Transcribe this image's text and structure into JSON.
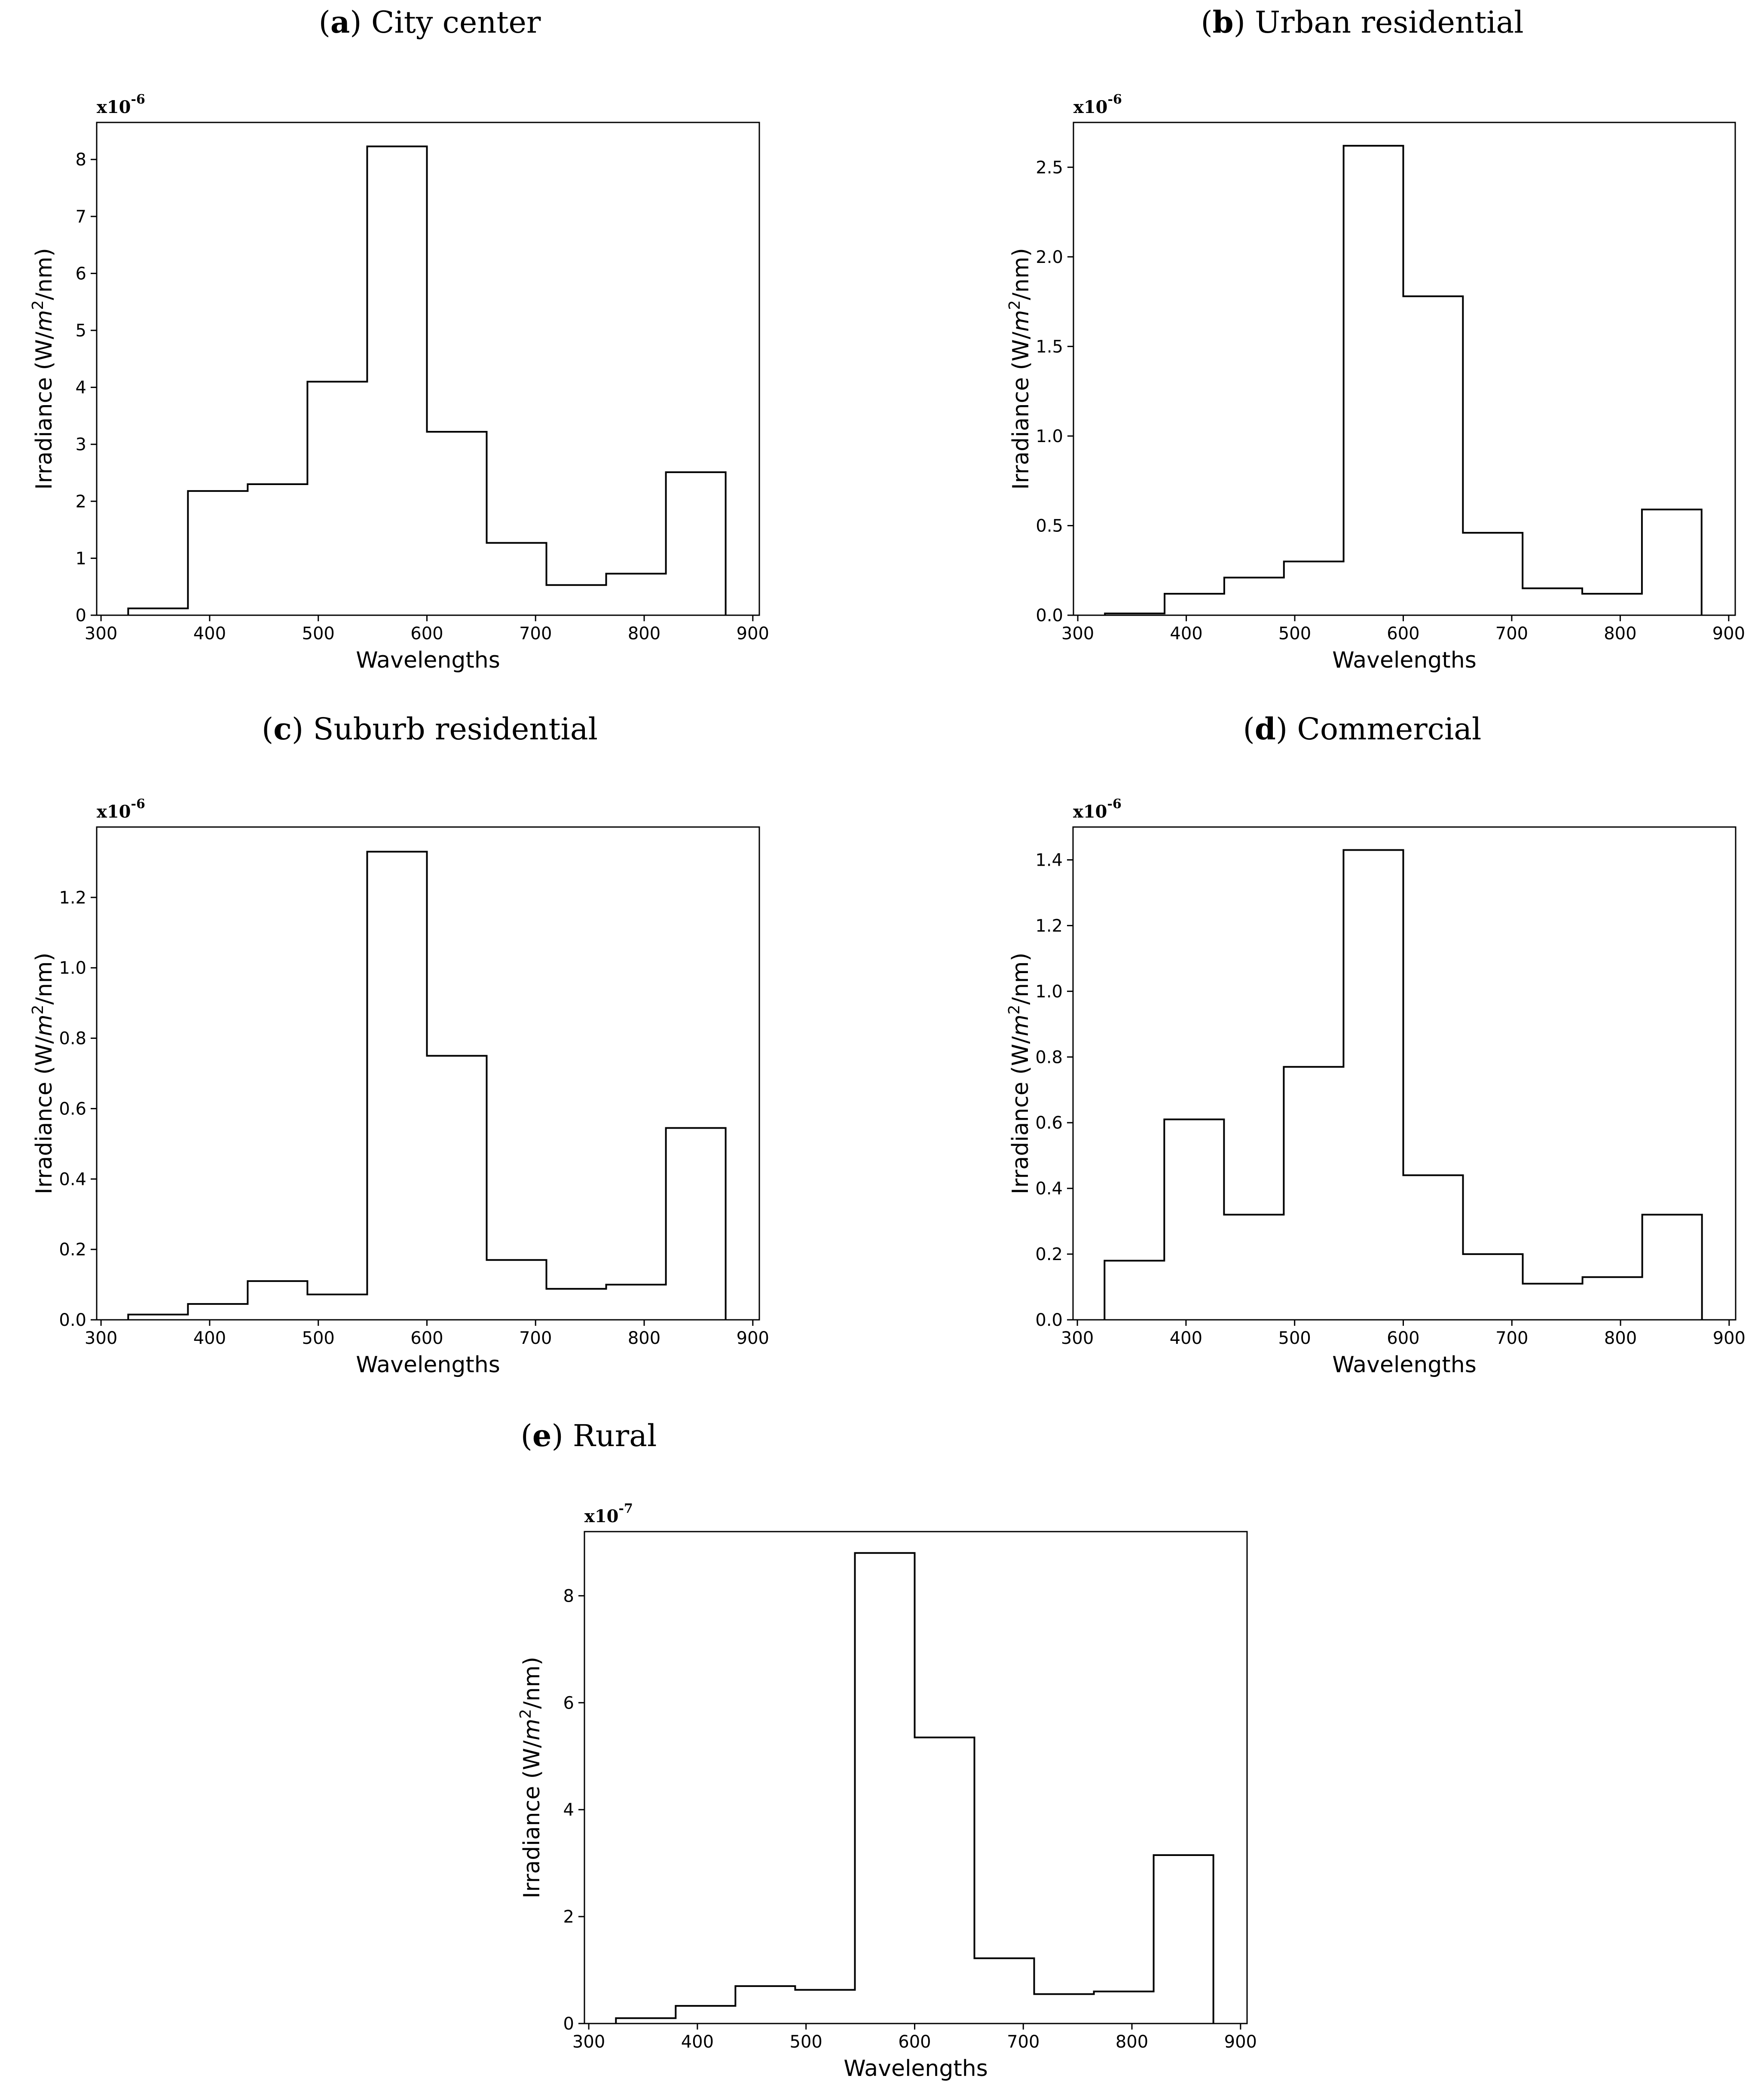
{
  "figure": {
    "xlabel": "Wavelengths",
    "ylabel_parts": [
      "Irradiance (W/",
      "m",
      "2",
      "/nm)"
    ]
  },
  "chart_data": [
    {
      "type": "step",
      "panel_letter": "a",
      "title": "City center",
      "xlabel": "Wavelengths",
      "ylabel": "Irradiance (W/m²/nm)",
      "multiplier": "x10",
      "multiplier_exp": "-6",
      "bin_edges": [
        325,
        380,
        435,
        490,
        545,
        600,
        655,
        710,
        765,
        820,
        875
      ],
      "values": [
        0.12,
        2.18,
        2.3,
        4.1,
        8.23,
        3.22,
        1.27,
        0.53,
        0.73,
        2.51
      ],
      "xlim": [
        296,
        906
      ],
      "ylim": [
        0,
        8.65
      ],
      "xticks": [
        300,
        400,
        500,
        600,
        700,
        800,
        900
      ],
      "yticks": [
        0,
        1,
        2,
        3,
        4,
        5,
        6,
        7,
        8
      ],
      "ytick_labels": [
        "0",
        "1",
        "2",
        "3",
        "4",
        "5",
        "6",
        "7",
        "8"
      ]
    },
    {
      "type": "step",
      "panel_letter": "b",
      "title": "Urban residential",
      "xlabel": "Wavelengths",
      "ylabel": "Irradiance (W/m²/nm)",
      "multiplier": "x10",
      "multiplier_exp": "-6",
      "bin_edges": [
        325,
        380,
        435,
        490,
        545,
        600,
        655,
        710,
        765,
        820,
        875
      ],
      "values": [
        0.01,
        0.12,
        0.21,
        0.3,
        2.62,
        1.78,
        0.46,
        0.15,
        0.12,
        0.59
      ],
      "xlim": [
        296,
        906
      ],
      "ylim": [
        0,
        2.75
      ],
      "xticks": [
        300,
        400,
        500,
        600,
        700,
        800,
        900
      ],
      "yticks": [
        0,
        0.5,
        1.0,
        1.5,
        2.0,
        2.5
      ],
      "ytick_labels": [
        "0.0",
        "0.5",
        "1.0",
        "1.5",
        "2.0",
        "2.5"
      ]
    },
    {
      "type": "step",
      "panel_letter": "c",
      "title": "Suburb residential",
      "xlabel": "Wavelengths",
      "ylabel": "Irradiance (W/m²/nm)",
      "multiplier": "x10",
      "multiplier_exp": "-6",
      "bin_edges": [
        325,
        380,
        435,
        490,
        545,
        600,
        655,
        710,
        765,
        820,
        875
      ],
      "values": [
        0.015,
        0.045,
        0.11,
        0.072,
        1.33,
        0.75,
        0.17,
        0.088,
        0.1,
        0.545
      ],
      "xlim": [
        296,
        906
      ],
      "ylim": [
        0,
        1.4
      ],
      "xticks": [
        300,
        400,
        500,
        600,
        700,
        800,
        900
      ],
      "yticks": [
        0,
        0.2,
        0.4,
        0.6,
        0.8,
        1.0,
        1.2
      ],
      "ytick_labels": [
        "0.0",
        "0.2",
        "0.4",
        "0.6",
        "0.8",
        "1.0",
        "1.2"
      ]
    },
    {
      "type": "step",
      "panel_letter": "d",
      "title": "Commercial",
      "xlabel": "Wavelengths",
      "ylabel": "Irradiance (W/m²/nm)",
      "multiplier": "x10",
      "multiplier_exp": "-6",
      "bin_edges": [
        325,
        380,
        435,
        490,
        545,
        600,
        655,
        710,
        765,
        820,
        875
      ],
      "values": [
        0.18,
        0.61,
        0.32,
        0.77,
        1.43,
        0.44,
        0.2,
        0.11,
        0.13,
        0.32
      ],
      "xlim": [
        296,
        906
      ],
      "ylim": [
        0,
        1.5
      ],
      "xticks": [
        300,
        400,
        500,
        600,
        700,
        800,
        900
      ],
      "yticks": [
        0,
        0.2,
        0.4,
        0.6,
        0.8,
        1.0,
        1.2,
        1.4
      ],
      "ytick_labels": [
        "0.0",
        "0.2",
        "0.4",
        "0.6",
        "0.8",
        "1.0",
        "1.2",
        "1.4"
      ]
    },
    {
      "type": "step",
      "panel_letter": "e",
      "title": "Rural",
      "xlabel": "Wavelengths",
      "ylabel": "Irradiance (W/m²/nm)",
      "multiplier": "x10",
      "multiplier_exp": "-7",
      "bin_edges": [
        325,
        380,
        435,
        490,
        545,
        600,
        655,
        710,
        765,
        820,
        875
      ],
      "values": [
        0.1,
        0.33,
        0.7,
        0.63,
        8.8,
        5.35,
        1.22,
        0.55,
        0.6,
        3.15
      ],
      "xlim": [
        296,
        906
      ],
      "ylim": [
        0,
        9.2
      ],
      "xticks": [
        300,
        400,
        500,
        600,
        700,
        800,
        900
      ],
      "yticks": [
        0,
        2,
        4,
        6,
        8
      ],
      "ytick_labels": [
        "0",
        "2",
        "4",
        "6",
        "8"
      ]
    }
  ]
}
